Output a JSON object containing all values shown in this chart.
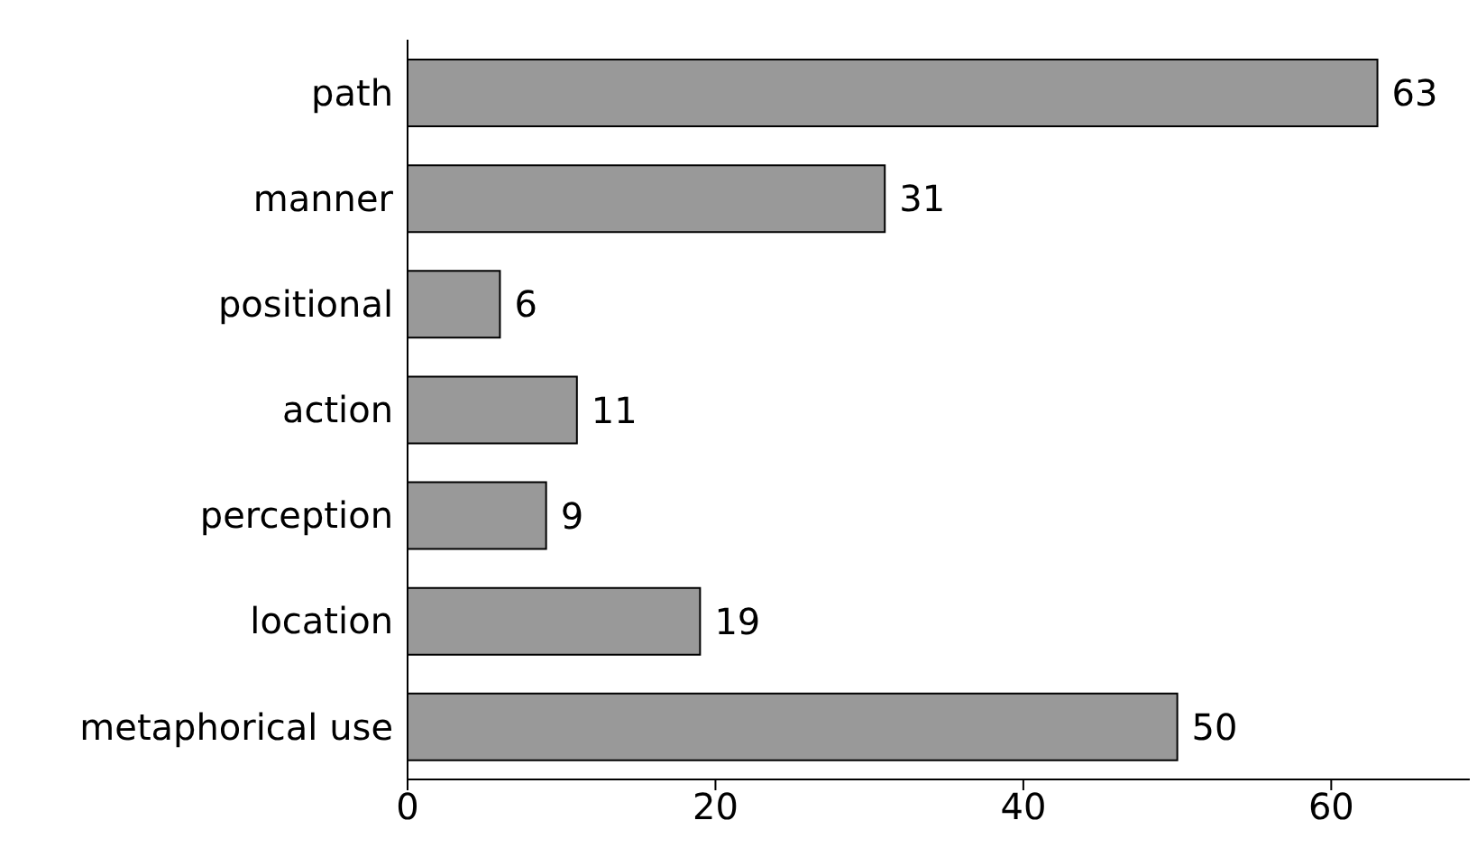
{
  "chart_data": {
    "type": "bar",
    "orientation": "horizontal",
    "categories": [
      "path",
      "manner",
      "positional",
      "action",
      "perception",
      "location",
      "metaphorical use"
    ],
    "values": [
      63,
      31,
      6,
      11,
      9,
      19,
      50
    ],
    "color": "#999999",
    "xlim": [
      0,
      69
    ],
    "xticks": [
      0,
      20,
      40,
      60
    ],
    "data_labels": true
  }
}
